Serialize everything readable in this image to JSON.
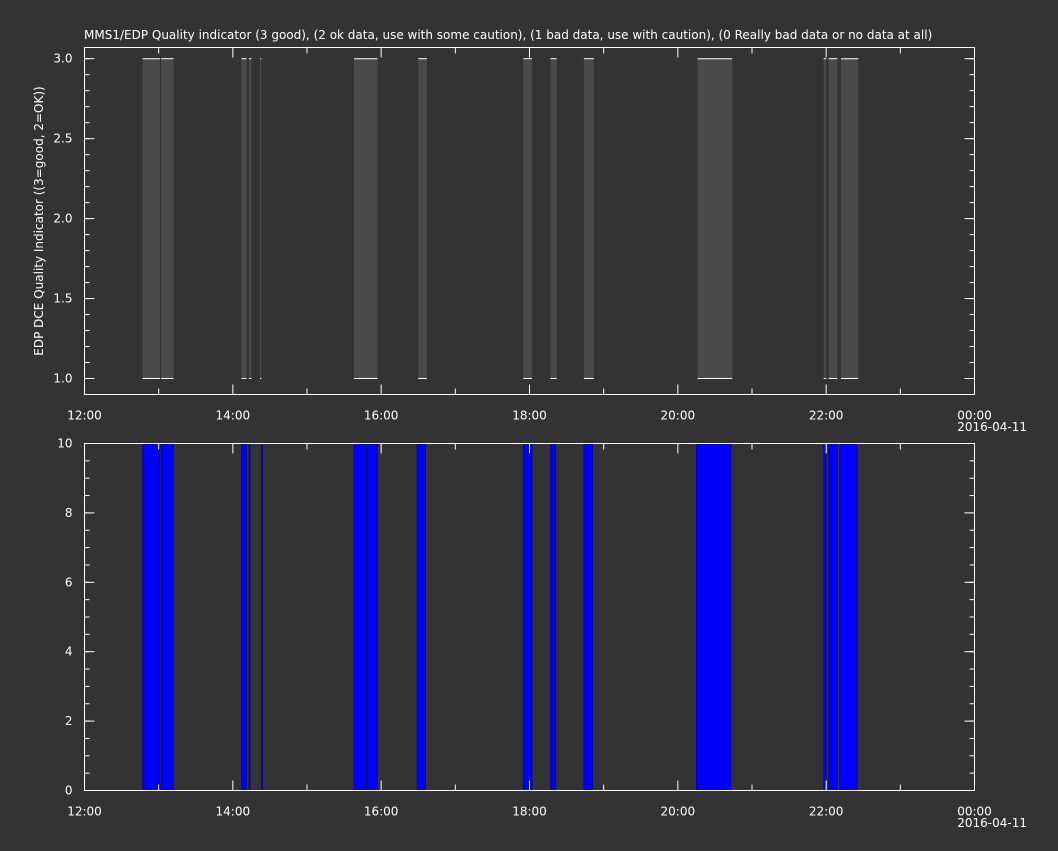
{
  "colors": {
    "background": "#333333",
    "plot_border": "#ffffff",
    "text": "#ffffff",
    "gray_fill": "#4a4a4a",
    "gray_line": "#ffffff",
    "blue_fill": "#0000ff",
    "blue_edge": "#000080"
  },
  "chart_data": [
    {
      "type": "bar",
      "title": "MMS1/EDP  Quality indicator (3 good), (2 ok data, use with some caution), (1 bad data, use with caution), (0 Really bad data or no data at all)",
      "ylabel": "EDP DCE Quality Indicator ((3=good, 2=OK))",
      "xlabel": "",
      "xlim": [
        "12:00",
        "00:00"
      ],
      "ylim": [
        0.9,
        3.07
      ],
      "x_ticks": [
        "12:00",
        "14:00",
        "16:00",
        "18:00",
        "20:00",
        "22:00",
        "00:00"
      ],
      "x_date_label": "2016-04-11",
      "y_ticks": [
        "1.0",
        "1.5",
        "2.0",
        "2.5",
        "3.0"
      ],
      "y_tick_values": [
        1.0,
        1.5,
        2.0,
        2.5,
        3.0
      ],
      "y_low": 1.0,
      "y_high": 3.0,
      "grid": false,
      "intervals": [
        {
          "start": "12:47",
          "end": "13:01"
        },
        {
          "start": "13:02",
          "end": "13:12"
        },
        {
          "start": "14:07",
          "end": "14:11"
        },
        {
          "start": "14:13",
          "end": "14:15"
        },
        {
          "start": "14:22",
          "end": "14:23"
        },
        {
          "start": "15:38",
          "end": "15:57"
        },
        {
          "start": "16:30",
          "end": "16:37"
        },
        {
          "start": "17:55",
          "end": "18:02"
        },
        {
          "start": "18:17",
          "end": "18:22"
        },
        {
          "start": "18:44",
          "end": "18:52"
        },
        {
          "start": "20:16",
          "end": "20:44"
        },
        {
          "start": "21:58",
          "end": "22:00"
        },
        {
          "start": "22:02",
          "end": "22:09"
        },
        {
          "start": "22:12",
          "end": "22:26"
        }
      ]
    },
    {
      "type": "bar",
      "title": "",
      "ylabel": "",
      "xlabel": "",
      "xlim": [
        "12:00",
        "00:00"
      ],
      "ylim": [
        0,
        10
      ],
      "x_ticks": [
        "12:00",
        "14:00",
        "16:00",
        "18:00",
        "20:00",
        "22:00",
        "00:00"
      ],
      "x_date_label": "2016-04-11",
      "y_ticks": [
        "0",
        "2",
        "4",
        "6",
        "8",
        "10"
      ],
      "y_tick_values": [
        0,
        2,
        4,
        6,
        8,
        10
      ],
      "grid": false,
      "intervals": [
        {
          "start": "12:47",
          "end": "13:01",
          "value": 10
        },
        {
          "start": "13:02",
          "end": "13:12",
          "value": 10
        },
        {
          "start": "14:07",
          "end": "14:11",
          "value": 10
        },
        {
          "start": "14:13",
          "end": "14:14",
          "value": 10
        },
        {
          "start": "14:23",
          "end": "14:24",
          "value": 10
        },
        {
          "start": "15:38",
          "end": "15:48",
          "value": 10
        },
        {
          "start": "15:49",
          "end": "15:57",
          "value": 10
        },
        {
          "start": "16:29",
          "end": "16:36",
          "value": 10
        },
        {
          "start": "17:55",
          "end": "18:02",
          "value": 10
        },
        {
          "start": "18:17",
          "end": "18:21",
          "value": 10
        },
        {
          "start": "18:44",
          "end": "18:51",
          "value": 10
        },
        {
          "start": "20:15",
          "end": "20:43",
          "value": 10
        },
        {
          "start": "21:58",
          "end": "22:00",
          "value": 10
        },
        {
          "start": "22:02",
          "end": "22:09",
          "value": 10
        },
        {
          "start": "22:11",
          "end": "22:25",
          "value": 10
        }
      ]
    }
  ]
}
